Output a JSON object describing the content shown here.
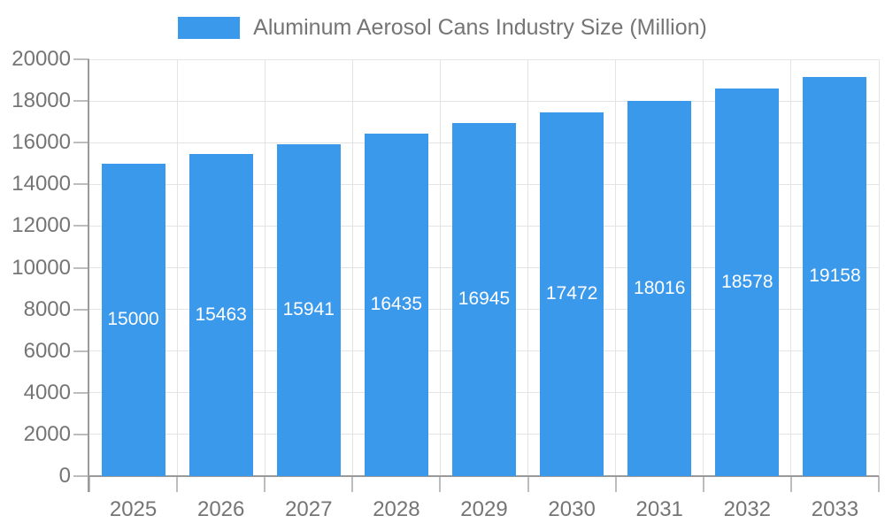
{
  "legend": {
    "label": "Aluminum Aerosol Cans Industry Size (Million)"
  },
  "chart_data": {
    "type": "bar",
    "title": "Aluminum Aerosol Cans Industry Size (Million)",
    "categories": [
      "2025",
      "2026",
      "2027",
      "2028",
      "2029",
      "2030",
      "2031",
      "2032",
      "2033"
    ],
    "values": [
      15000,
      15463,
      15941,
      16435,
      16945,
      17472,
      18016,
      18578,
      19158
    ],
    "value_labels": [
      "15000",
      "15463",
      "15941",
      "16435",
      "16945",
      "17472",
      "18016",
      "18578",
      "19158"
    ],
    "xlabel": "",
    "ylabel": "",
    "ylim": [
      0,
      20000
    ],
    "y_tick_step": 2000,
    "y_tick_labels": [
      "0",
      "2000",
      "4000",
      "6000",
      "8000",
      "10000",
      "12000",
      "14000",
      "16000",
      "18000",
      "20000"
    ],
    "grid": true,
    "legend_position": "top-center",
    "value_label_position": "bar-center"
  },
  "colors": {
    "bar": "#3b99ec",
    "axis_line": "#9a9a9a",
    "grid_line": "#e4e4e4",
    "tick": "#bdbdbd",
    "label_text": "#757575",
    "value_text": "#ffffff",
    "background": "#ffffff"
  }
}
